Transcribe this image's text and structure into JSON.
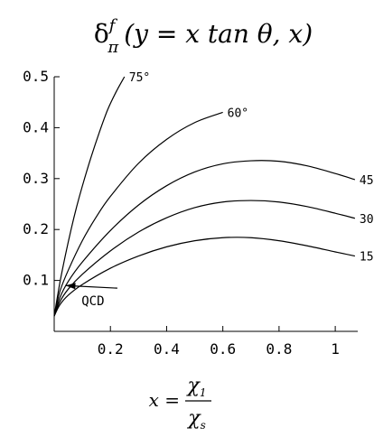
{
  "chart_data": {
    "type": "line",
    "title": {
      "delta": "δ",
      "sub": "π",
      "sup": "f",
      "args": "(y = x tan θ, x)"
    },
    "xlabel": {
      "lhs": "x =",
      "numerator": "χ",
      "numerator_sub": "1",
      "denominator": "χ",
      "denominator_sub": "s"
    },
    "ylabel": "",
    "xlim": [
      0,
      1.08
    ],
    "ylim": [
      0,
      0.5
    ],
    "x_ticks": [
      {
        "value": 0.2,
        "label": "0.2"
      },
      {
        "value": 0.4,
        "label": "0.4"
      },
      {
        "value": 0.6,
        "label": "0.6"
      },
      {
        "value": 0.8,
        "label": "0.8"
      },
      {
        "value": 1.0,
        "label": "1"
      }
    ],
    "y_ticks": [
      {
        "value": 0.1,
        "label": "0.1"
      },
      {
        "value": 0.2,
        "label": "0.2"
      },
      {
        "value": 0.3,
        "label": "0.3"
      },
      {
        "value": 0.4,
        "label": "0.4"
      },
      {
        "value": 0.5,
        "label": "0.5"
      }
    ],
    "grid": false,
    "legend": "none",
    "series": [
      {
        "name": "15°",
        "label": "15°",
        "x": [
          0,
          0.02,
          0.05,
          0.1,
          0.2,
          0.3,
          0.4,
          0.5,
          0.6,
          0.7,
          0.8,
          0.9,
          1.0,
          1.07
        ],
        "y": [
          0.03,
          0.052,
          0.071,
          0.092,
          0.124,
          0.148,
          0.166,
          0.178,
          0.184,
          0.184,
          0.178,
          0.168,
          0.156,
          0.148
        ]
      },
      {
        "name": "30°",
        "label": "30°",
        "x": [
          0,
          0.02,
          0.05,
          0.1,
          0.2,
          0.3,
          0.4,
          0.5,
          0.6,
          0.7,
          0.8,
          0.9,
          1.0,
          1.07
        ],
        "y": [
          0.03,
          0.058,
          0.083,
          0.112,
          0.158,
          0.195,
          0.223,
          0.243,
          0.254,
          0.257,
          0.254,
          0.245,
          0.232,
          0.222
        ]
      },
      {
        "name": "45°",
        "label": "45°",
        "x": [
          0,
          0.02,
          0.05,
          0.1,
          0.2,
          0.3,
          0.4,
          0.5,
          0.6,
          0.7,
          0.8,
          0.9,
          1.0,
          1.07
        ],
        "y": [
          0.03,
          0.066,
          0.098,
          0.136,
          0.198,
          0.248,
          0.286,
          0.313,
          0.329,
          0.335,
          0.334,
          0.325,
          0.31,
          0.298
        ]
      },
      {
        "name": "60°",
        "label": "60°",
        "x": [
          0,
          0.02,
          0.05,
          0.1,
          0.15,
          0.2,
          0.3,
          0.4,
          0.5,
          0.6
        ],
        "y": [
          0.03,
          0.078,
          0.12,
          0.178,
          0.225,
          0.265,
          0.33,
          0.377,
          0.41,
          0.43
        ]
      },
      {
        "name": "75°",
        "label": "75°",
        "x": [
          0,
          0.02,
          0.04,
          0.06,
          0.08,
          0.1,
          0.13,
          0.16,
          0.19,
          0.22,
          0.25
        ],
        "y": [
          0.03,
          0.095,
          0.15,
          0.2,
          0.245,
          0.285,
          0.34,
          0.39,
          0.435,
          0.47,
          0.5
        ]
      }
    ],
    "annotations": [
      {
        "text": "QCD",
        "x": 0.08,
        "y": 0.06,
        "points_to": {
          "x": 0.04,
          "y": 0.09
        }
      }
    ]
  }
}
